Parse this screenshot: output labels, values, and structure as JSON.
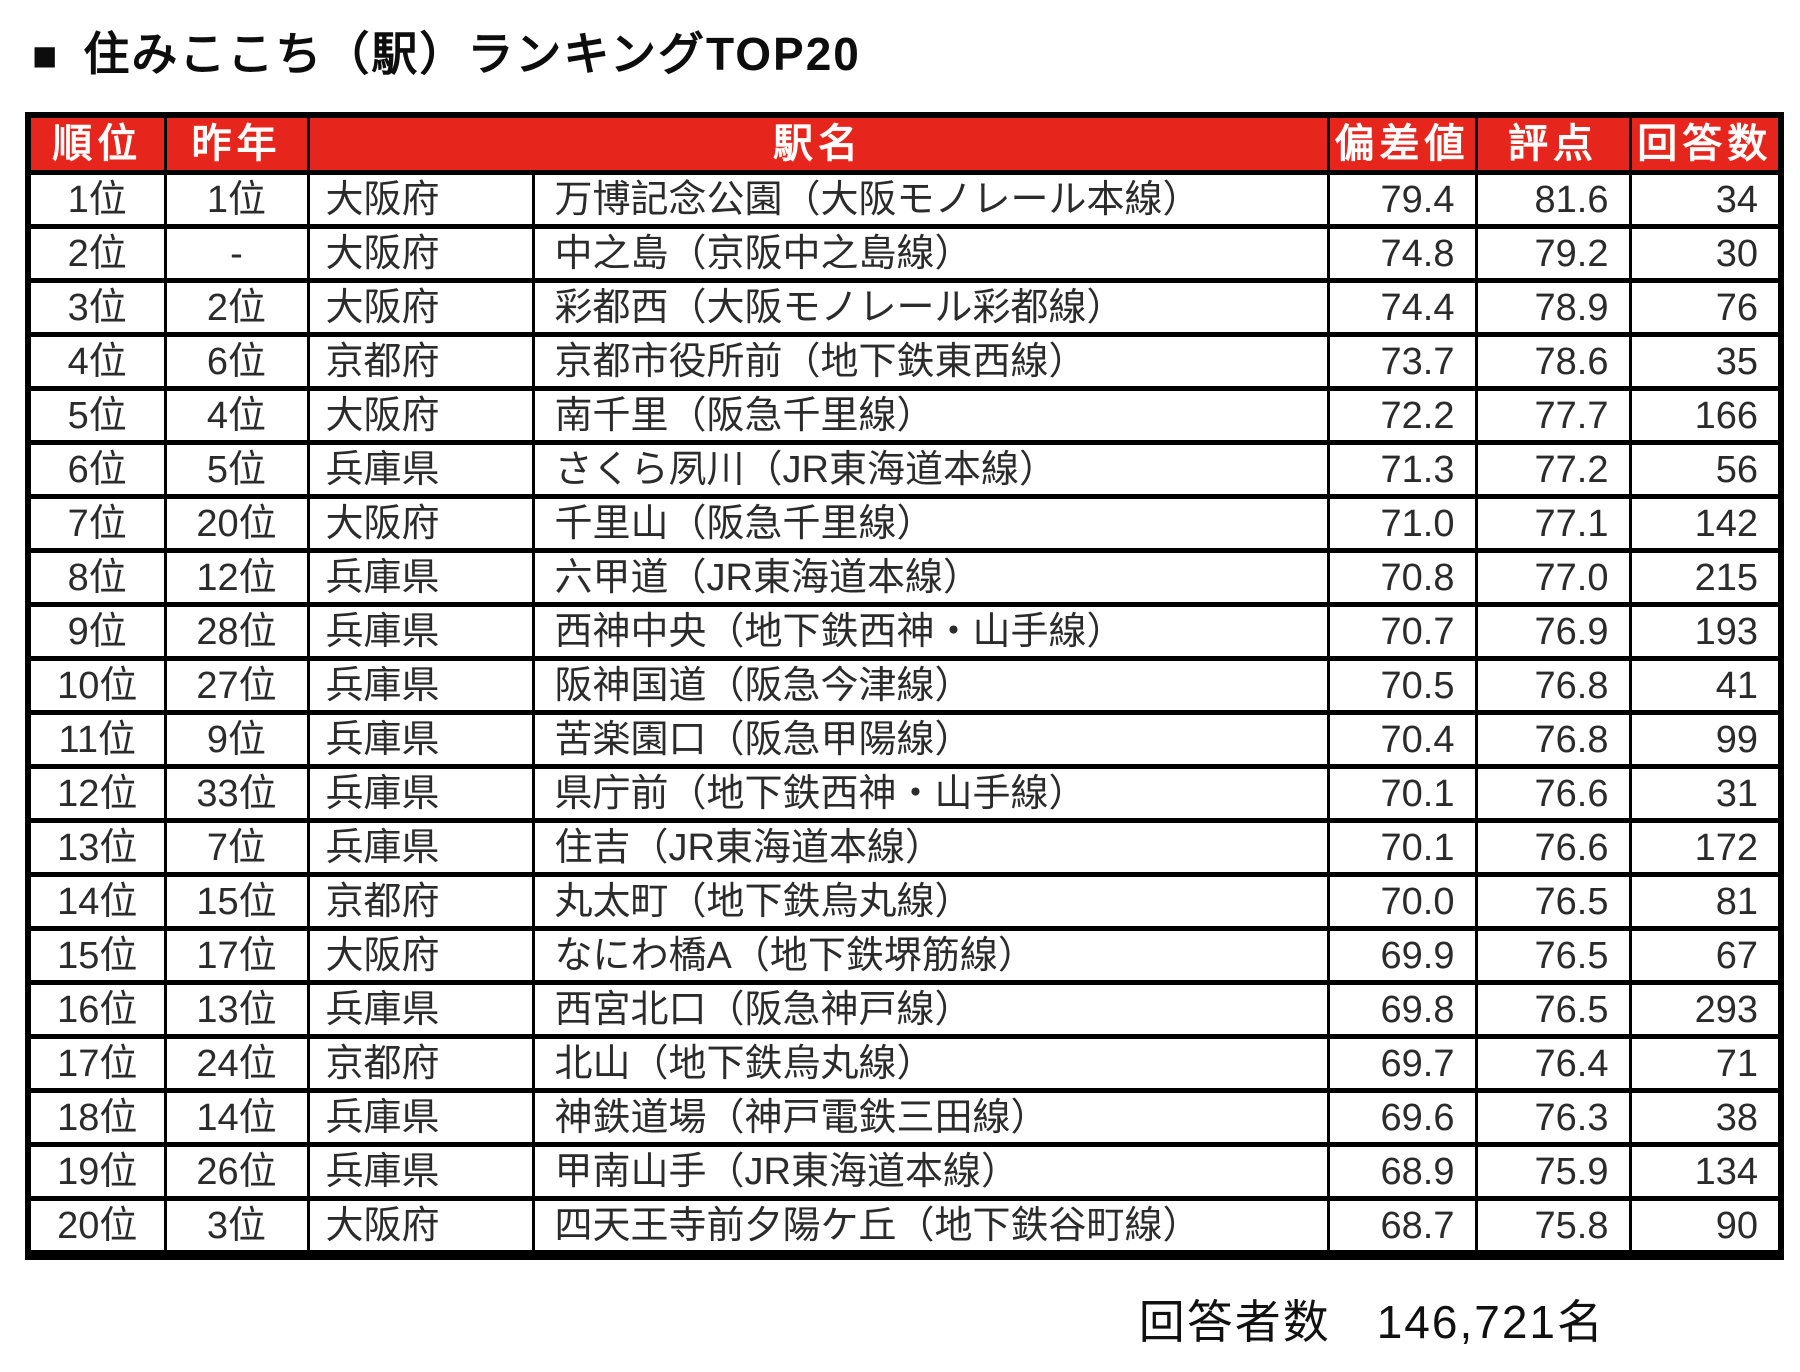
{
  "page_title": {
    "marker": "■",
    "text": "住みここち（駅）ランキングTOP20"
  },
  "chart_data": {
    "type": "table",
    "title": "住みここち（駅）ランキングTOP20",
    "headers": {
      "rank": "順位",
      "last_year": "昨年",
      "station": "駅名",
      "deviation": "偏差値",
      "score": "評点",
      "responses": "回答数"
    },
    "rows": [
      {
        "rank": "1位",
        "last_year": "1位",
        "prefecture": "大阪府",
        "station": "万博記念公園（大阪モノレール本線）",
        "deviation": "79.4",
        "score": "81.6",
        "responses": "34"
      },
      {
        "rank": "2位",
        "last_year": "-",
        "prefecture": "大阪府",
        "station": "中之島（京阪中之島線）",
        "deviation": "74.8",
        "score": "79.2",
        "responses": "30"
      },
      {
        "rank": "3位",
        "last_year": "2位",
        "prefecture": "大阪府",
        "station": "彩都西（大阪モノレール彩都線）",
        "deviation": "74.4",
        "score": "78.9",
        "responses": "76"
      },
      {
        "rank": "4位",
        "last_year": "6位",
        "prefecture": "京都府",
        "station": "京都市役所前（地下鉄東西線）",
        "deviation": "73.7",
        "score": "78.6",
        "responses": "35"
      },
      {
        "rank": "5位",
        "last_year": "4位",
        "prefecture": "大阪府",
        "station": "南千里（阪急千里線）",
        "deviation": "72.2",
        "score": "77.7",
        "responses": "166"
      },
      {
        "rank": "6位",
        "last_year": "5位",
        "prefecture": "兵庫県",
        "station": "さくら夙川（JR東海道本線）",
        "deviation": "71.3",
        "score": "77.2",
        "responses": "56"
      },
      {
        "rank": "7位",
        "last_year": "20位",
        "prefecture": "大阪府",
        "station": "千里山（阪急千里線）",
        "deviation": "71.0",
        "score": "77.1",
        "responses": "142"
      },
      {
        "rank": "8位",
        "last_year": "12位",
        "prefecture": "兵庫県",
        "station": "六甲道（JR東海道本線）",
        "deviation": "70.8",
        "score": "77.0",
        "responses": "215"
      },
      {
        "rank": "9位",
        "last_year": "28位",
        "prefecture": "兵庫県",
        "station": "西神中央（地下鉄西神・山手線）",
        "deviation": "70.7",
        "score": "76.9",
        "responses": "193"
      },
      {
        "rank": "10位",
        "last_year": "27位",
        "prefecture": "兵庫県",
        "station": "阪神国道（阪急今津線）",
        "deviation": "70.5",
        "score": "76.8",
        "responses": "41"
      },
      {
        "rank": "11位",
        "last_year": "9位",
        "prefecture": "兵庫県",
        "station": "苦楽園口（阪急甲陽線）",
        "deviation": "70.4",
        "score": "76.8",
        "responses": "99"
      },
      {
        "rank": "12位",
        "last_year": "33位",
        "prefecture": "兵庫県",
        "station": "県庁前（地下鉄西神・山手線）",
        "deviation": "70.1",
        "score": "76.6",
        "responses": "31"
      },
      {
        "rank": "13位",
        "last_year": "7位",
        "prefecture": "兵庫県",
        "station": "住吉（JR東海道本線）",
        "deviation": "70.1",
        "score": "76.6",
        "responses": "172"
      },
      {
        "rank": "14位",
        "last_year": "15位",
        "prefecture": "京都府",
        "station": "丸太町（地下鉄烏丸線）",
        "deviation": "70.0",
        "score": "76.5",
        "responses": "81"
      },
      {
        "rank": "15位",
        "last_year": "17位",
        "prefecture": "大阪府",
        "station": "なにわ橋A（地下鉄堺筋線）",
        "deviation": "69.9",
        "score": "76.5",
        "responses": "67"
      },
      {
        "rank": "16位",
        "last_year": "13位",
        "prefecture": "兵庫県",
        "station": "西宮北口（阪急神戸線）",
        "deviation": "69.8",
        "score": "76.5",
        "responses": "293"
      },
      {
        "rank": "17位",
        "last_year": "24位",
        "prefecture": "京都府",
        "station": "北山（地下鉄烏丸線）",
        "deviation": "69.7",
        "score": "76.4",
        "responses": "71"
      },
      {
        "rank": "18位",
        "last_year": "14位",
        "prefecture": "兵庫県",
        "station": "神鉄道場（神戸電鉄三田線）",
        "deviation": "69.6",
        "score": "76.3",
        "responses": "38"
      },
      {
        "rank": "19位",
        "last_year": "26位",
        "prefecture": "兵庫県",
        "station": "甲南山手（JR東海道本線）",
        "deviation": "68.9",
        "score": "75.9",
        "responses": "134"
      },
      {
        "rank": "20位",
        "last_year": "3位",
        "prefecture": "大阪府",
        "station": "四天王寺前夕陽ケ丘（地下鉄谷町線）",
        "deviation": "68.7",
        "score": "75.8",
        "responses": "90"
      }
    ],
    "footer_label": "回答者数",
    "footer_value": "146,721名",
    "layout_hints": {
      "header_background": "#e6251c",
      "header_text_color": "#ffffff",
      "border_color": "#000000",
      "grid": true
    }
  },
  "colors": {
    "header_red": "#e6251c",
    "border_black": "#000000",
    "cell_text": "#2b2b2b"
  }
}
